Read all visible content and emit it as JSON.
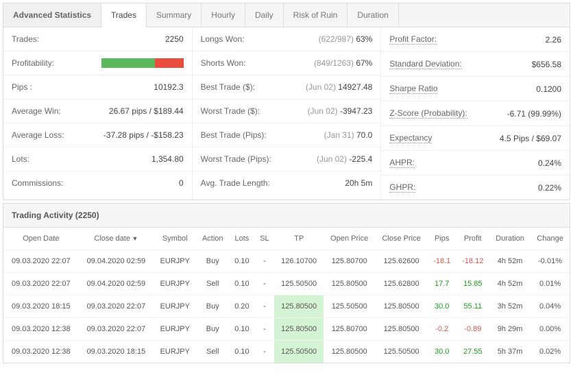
{
  "tabs": {
    "title": "Advanced Statistics",
    "items": [
      "Trades",
      "Summary",
      "Hourly",
      "Daily",
      "Risk of Ruin",
      "Duration"
    ],
    "active_index": 0
  },
  "stats": {
    "col1": [
      {
        "label": "Trades:",
        "value": "2250",
        "dotted": false
      },
      {
        "label": "Profitability:",
        "value": "",
        "dotted": false,
        "bar": {
          "green_pct": 65,
          "red_pct": 35
        }
      },
      {
        "label": "Pips :",
        "value": "10192.3",
        "dotted": false
      },
      {
        "label": "Average Win:",
        "value": "26.67 pips / $189.44",
        "dotted": false
      },
      {
        "label": "Average Loss:",
        "value": "-37.28 pips / -$158.23",
        "dotted": false
      },
      {
        "label": "Lots:",
        "value": "1,354.80",
        "dotted": false
      },
      {
        "label": "Commissions:",
        "value": "0",
        "dotted": false
      }
    ],
    "col2": [
      {
        "label": "Longs Won:",
        "muted": "(622/987)",
        "value": " 63%",
        "dotted": false
      },
      {
        "label": "Shorts Won:",
        "muted": "(849/1263)",
        "value": " 67%",
        "dotted": false
      },
      {
        "label": "Best Trade ($):",
        "muted": "(Jun 02)",
        "value": " 14927.48",
        "dotted": false
      },
      {
        "label": "Worst Trade ($):",
        "muted": "(Jun 02)",
        "value": " -3947.23",
        "dotted": false
      },
      {
        "label": "Best Trade (Pips):",
        "muted": "(Jan 31)",
        "value": " 70.0",
        "dotted": false
      },
      {
        "label": "Worst Trade (Pips):",
        "muted": "(Jun 02)",
        "value": " -225.4",
        "dotted": false
      },
      {
        "label": "Avg. Trade Length:",
        "value": "20h 5m",
        "dotted": false
      }
    ],
    "col3": [
      {
        "label": "Profit Factor:",
        "value": "2.26",
        "dotted": true
      },
      {
        "label": "Standard Deviation:",
        "value": "$656.58",
        "dotted": true
      },
      {
        "label": "Sharpe Ratio",
        "value": "0.1200",
        "dotted": true
      },
      {
        "label": "Z-Score (Probability):",
        "value": "-6.71 (99.99%)",
        "dotted": true
      },
      {
        "label": "Expectancy",
        "value": "4.5 Pips / $69.07",
        "dotted": true
      },
      {
        "label": "AHPR:",
        "value": "0.24%",
        "dotted": true
      },
      {
        "label": "GHPR:",
        "value": "0.22%",
        "dotted": true
      }
    ]
  },
  "activity": {
    "title": "Trading Activity (2250)",
    "columns": [
      "Open Date",
      "Close date",
      "Symbol",
      "Action",
      "Lots",
      "SL",
      "TP",
      "Open Price",
      "Close Price",
      "Pips",
      "Profit",
      "Duration",
      "Change"
    ],
    "sort_col_index": 1,
    "sort_marker": "▼",
    "rows": [
      {
        "open": "09.03.2020 22:07",
        "close": "09.04.2020 02:59",
        "sym": "EURJPY",
        "act": "Buy",
        "lots": "0.10",
        "sl": "-",
        "tp": "126.10700",
        "tp_hl": false,
        "openp": "125.80700",
        "closep": "125.62600",
        "pips": "-18.1",
        "pips_c": "neg",
        "profit": "-18.12",
        "profit_c": "neg",
        "dur": "4h 52m",
        "chg": "-0.01%"
      },
      {
        "open": "09.03.2020 22:07",
        "close": "09.04.2020 02:59",
        "sym": "EURJPY",
        "act": "Sell",
        "lots": "0.10",
        "sl": "-",
        "tp": "125.50500",
        "tp_hl": false,
        "openp": "125.80500",
        "closep": "125.62800",
        "pips": "17.7",
        "pips_c": "pos",
        "profit": "15.85",
        "profit_c": "pos",
        "dur": "4h 52m",
        "chg": "0.01%"
      },
      {
        "open": "09.03.2020 18:15",
        "close": "09.03.2020 22:07",
        "sym": "EURJPY",
        "act": "Buy",
        "lots": "0.20",
        "sl": "-",
        "tp": "125.80500",
        "tp_hl": true,
        "openp": "125.50500",
        "closep": "125.80500",
        "pips": "30.0",
        "pips_c": "pos",
        "profit": "55.11",
        "profit_c": "pos",
        "dur": "3h 52m",
        "chg": "0.04%"
      },
      {
        "open": "09.03.2020 12:38",
        "close": "09.03.2020 22:07",
        "sym": "EURJPY",
        "act": "Buy",
        "lots": "0.10",
        "sl": "-",
        "tp": "125.80500",
        "tp_hl": true,
        "openp": "125.80700",
        "closep": "125.80500",
        "pips": "-0.2",
        "pips_c": "neg",
        "profit": "-0.89",
        "profit_c": "neg",
        "dur": "9h 29m",
        "chg": "0.00%"
      },
      {
        "open": "09.03.2020 12:38",
        "close": "09.03.2020 18:15",
        "sym": "EURJPY",
        "act": "Sell",
        "lots": "0.10",
        "sl": "-",
        "tp": "125.50500",
        "tp_hl": true,
        "openp": "125.80500",
        "closep": "125.50500",
        "pips": "30.0",
        "pips_c": "pos",
        "profit": "27.55",
        "profit_c": "pos",
        "dur": "5h 37m",
        "chg": "0.02%"
      }
    ]
  }
}
